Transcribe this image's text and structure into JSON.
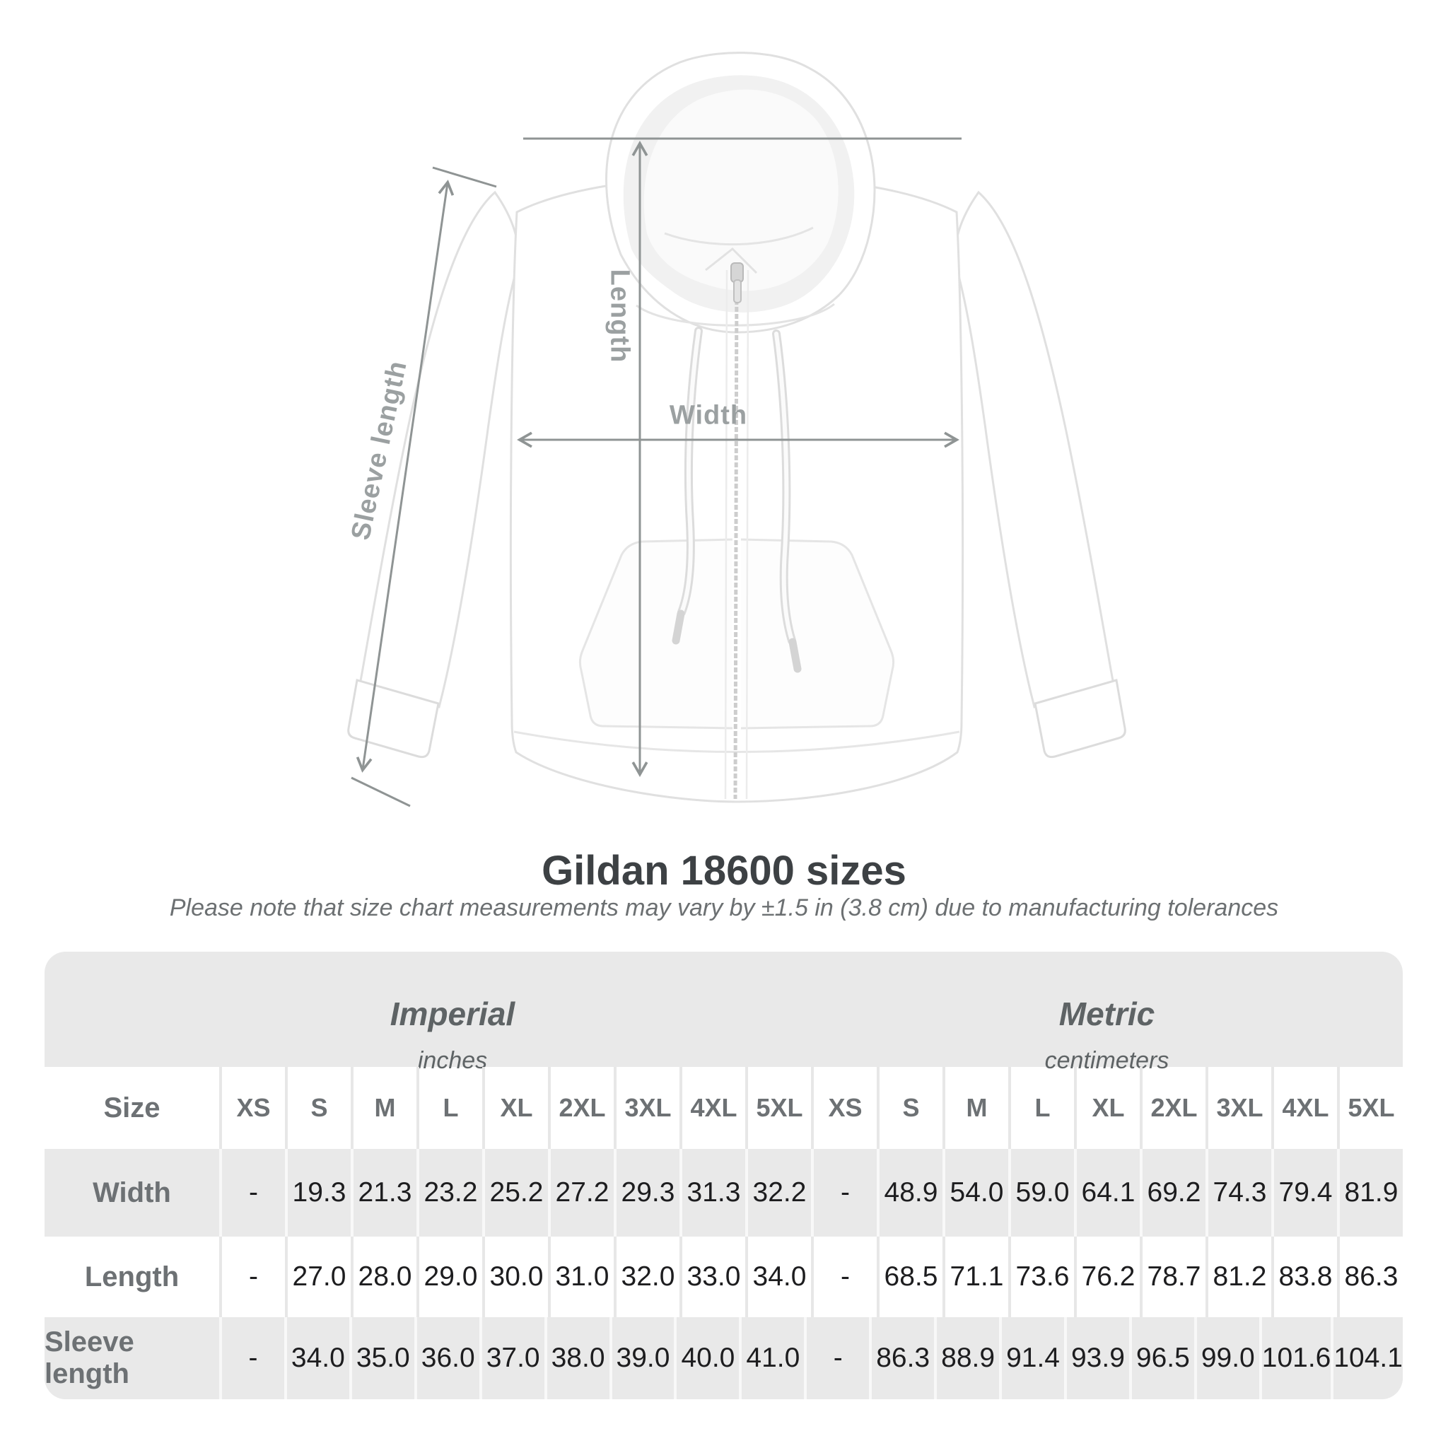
{
  "title": "Gildan 18600 sizes",
  "subtitle": "Please note that size chart measurements may vary by ±1.5 in (3.8 cm) due to manufacturing tolerances",
  "diagram": {
    "product": "white zip-up hooded sweatshirt (front view)",
    "labels": {
      "length": "Length",
      "width": "Width",
      "sleeve": "Sleeve length"
    },
    "line_color": "#8f9494",
    "label_color": "#9ba0a1"
  },
  "table": {
    "background": "#e9e9e9",
    "alt_row_background": "#ffffff",
    "value_text_color": "#1d1d1f",
    "header_text_color": "#6d7174",
    "size_label": "Size",
    "groups": [
      {
        "title": "Imperial",
        "unit": "inches"
      },
      {
        "title": "Metric",
        "unit": "centimeters"
      }
    ],
    "sizes": [
      "XS",
      "S",
      "M",
      "L",
      "XL",
      "2XL",
      "3XL",
      "4XL",
      "5XL"
    ],
    "rows": [
      {
        "label": "Width",
        "imperial": [
          "-",
          "19.3",
          "21.3",
          "23.2",
          "25.2",
          "27.2",
          "29.3",
          "31.3",
          "32.2"
        ],
        "metric": [
          "-",
          "48.9",
          "54.0",
          "59.0",
          "64.1",
          "69.2",
          "74.3",
          "79.4",
          "81.9"
        ]
      },
      {
        "label": "Length",
        "imperial": [
          "-",
          "27.0",
          "28.0",
          "29.0",
          "30.0",
          "31.0",
          "32.0",
          "33.0",
          "34.0"
        ],
        "metric": [
          "-",
          "68.5",
          "71.1",
          "73.6",
          "76.2",
          "78.7",
          "81.2",
          "83.8",
          "86.3"
        ]
      },
      {
        "label": "Sleeve length",
        "imperial": [
          "-",
          "34.0",
          "35.0",
          "36.0",
          "37.0",
          "38.0",
          "39.0",
          "40.0",
          "41.0"
        ],
        "metric": [
          "-",
          "86.3",
          "88.9",
          "91.4",
          "93.9",
          "96.5",
          "99.0",
          "101.6",
          "104.1"
        ]
      }
    ]
  }
}
